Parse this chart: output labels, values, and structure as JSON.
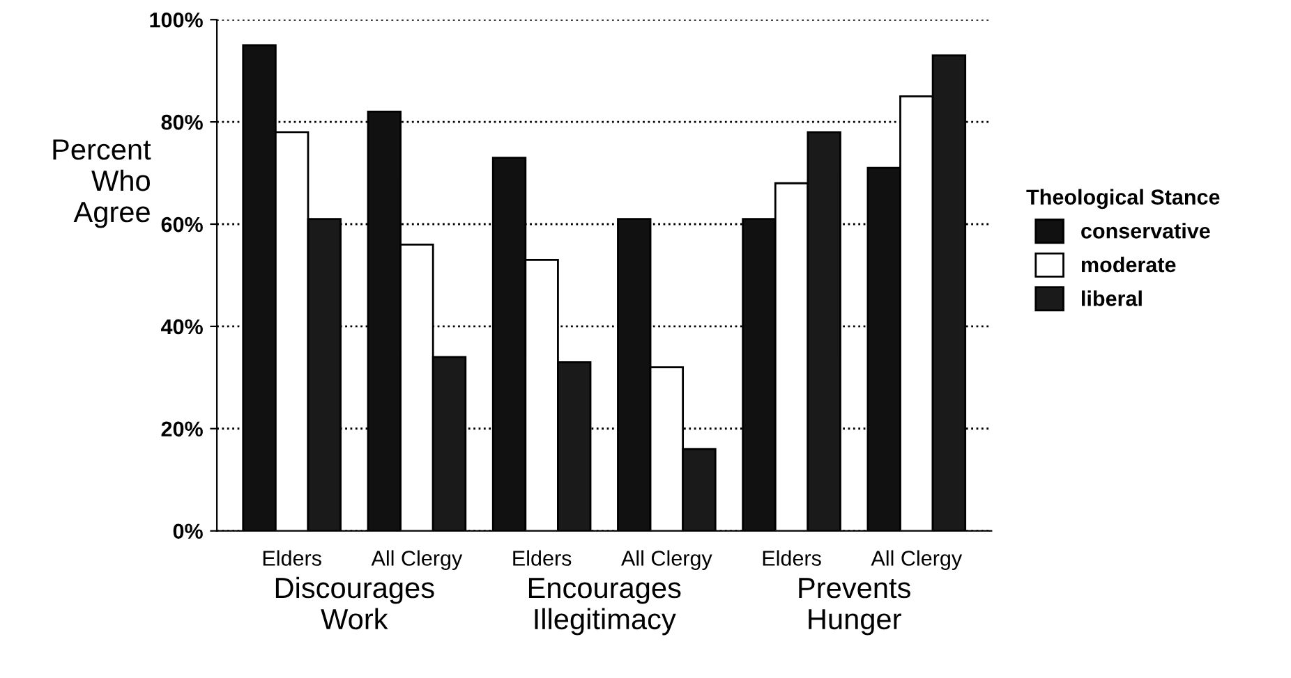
{
  "chart_data": {
    "type": "bar",
    "ylabel": "Percent\nWho\nAgree",
    "legend_title": "Theological Stance",
    "categories": [
      "Elders",
      "All Clergy",
      "Elders",
      "All Clergy",
      "Elders",
      "All Clergy"
    ],
    "series": [
      {
        "name": "conservative",
        "color": "#111111",
        "values": [
          95,
          82,
          73,
          61,
          61,
          71
        ]
      },
      {
        "name": "moderate",
        "color": "#ffffff",
        "values": [
          78,
          56,
          53,
          32,
          68,
          85
        ]
      },
      {
        "name": "liberal",
        "color": "#1a1a1a",
        "values": [
          61,
          34,
          33,
          16,
          78,
          93
        ]
      }
    ],
    "ylim": [
      0,
      100
    ],
    "yticks": [
      {
        "value": 0,
        "label": "0%"
      },
      {
        "value": 20,
        "label": "20%"
      },
      {
        "value": 40,
        "label": "40%"
      },
      {
        "value": 60,
        "label": "60%"
      },
      {
        "value": 80,
        "label": "80%"
      },
      {
        "value": 100,
        "label": "100%"
      }
    ],
    "grid": "y",
    "legend": "right",
    "annotations": [
      "Discourages\nWork",
      "Encourages\nIllegitimacy",
      "Prevents\nHunger"
    ]
  }
}
